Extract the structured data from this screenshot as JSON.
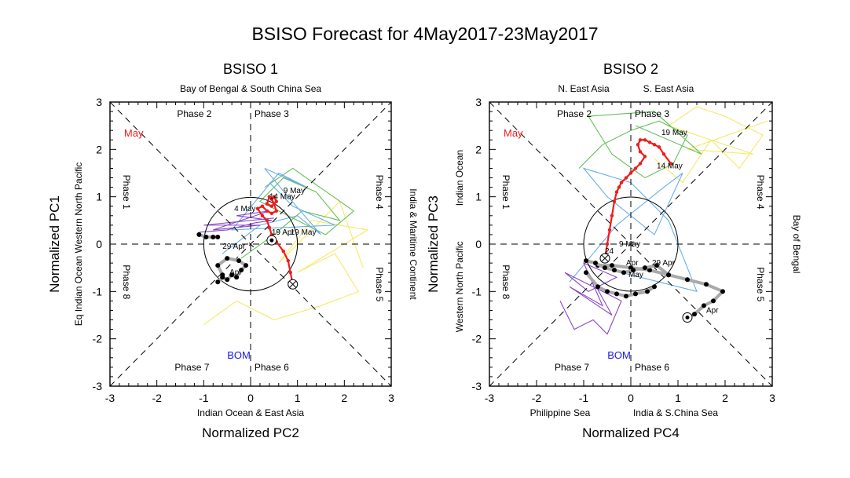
{
  "title": "BSISO Forecast for 4May2017-23May2017",
  "colors": {
    "observed": "#ee1c1c",
    "forecast_mean": "#a9a9a9",
    "ensemble": [
      "#f2e85a",
      "#55b848",
      "#56a6e6",
      "#7b34c0"
    ],
    "bom_label": "#1818ee",
    "month_label": "#ee1c1c"
  },
  "chart_data": [
    {
      "type": "line",
      "title": "BSISO 1",
      "xlabel": "Normalized PC2",
      "ylabel": "Normalized PC1",
      "xlim": [
        -3,
        3
      ],
      "ylim": [
        3,
        -3
      ],
      "x_ticks": [
        "-3",
        "-2",
        "-1",
        "0",
        "1",
        "2",
        "3"
      ],
      "y_ticks": [
        "-3",
        "-2",
        "-1",
        "0",
        "1",
        "2",
        "3"
      ],
      "grid": false,
      "phases": {
        "p1": "Phase 1",
        "p2": "Phase 2",
        "p3": "Phase 3",
        "p4": "Phase 4",
        "p5": "Phase 5",
        "p6": "Phase 6",
        "p7": "Phase 7",
        "p8": "Phase 8"
      },
      "regions": {
        "top": "Bay of Bengal & South China Sea",
        "bottom": "Indian Ocean & East Asia",
        "left_outer": "Eq Indian Ocean",
        "left_inner": "Western North Pacific",
        "right": "India & Maritime Continent"
      },
      "bom_label": "BOM",
      "month_label": "May",
      "unit_circle_radius": 1,
      "annotations": [
        "29 Apr",
        "Apr",
        "19  Apr",
        "19 May",
        "4 May",
        "14 May",
        "9 May"
      ],
      "series": [
        {
          "name": "observed",
          "x": [
            0.9,
            0.85,
            0.8,
            0.7,
            0.55,
            0.45,
            0.4,
            0.35,
            0.25,
            0.15,
            0.25,
            0.35,
            0.45,
            0.55,
            0.5,
            0.45,
            0.5,
            0.55,
            0.45,
            0.35,
            0.4
          ],
          "y": [
            -0.85,
            -0.6,
            -0.35,
            -0.15,
            0.05,
            0.2,
            0.35,
            0.5,
            0.6,
            0.75,
            0.8,
            0.7,
            0.65,
            0.7,
            0.85,
            0.95,
            1.0,
            0.9,
            0.8,
            0.85,
            1.0
          ]
        },
        {
          "name": "forecast_mean",
          "x": [
            -0.7,
            -0.6,
            -0.5,
            -0.4,
            -0.3,
            -0.2,
            -0.1,
            -0.25,
            -0.5,
            -0.7,
            -0.6
          ],
          "y": [
            -0.8,
            -0.7,
            -0.75,
            -0.65,
            -0.7,
            -0.55,
            -0.45,
            -0.35,
            -0.3,
            -0.45,
            -0.65
          ]
        },
        {
          "name": "forecast_mean_short",
          "x": [
            -1.1,
            -0.95,
            -0.8,
            -0.7
          ],
          "y": [
            0.2,
            0.15,
            0.15,
            0.15
          ]
        },
        {
          "name": "ensemble_purple",
          "x": [
            -1.1,
            -0.5,
            0.1,
            0.45,
            -0.3,
            0.4,
            -0.8,
            0.2,
            -1.0,
            0.5
          ],
          "y": [
            0.25,
            0.3,
            0.45,
            0.5,
            0.6,
            0.7,
            0.3,
            0.4,
            0.4,
            0.55
          ]
        },
        {
          "name": "ensemble_blue",
          "x": [
            -0.6,
            0.2,
            1.0,
            1.5,
            0.8,
            0.3,
            1.2,
            0.6,
            -0.4,
            1.8,
            0.9,
            0.4
          ],
          "y": [
            -0.2,
            0.4,
            0.6,
            0.2,
            1.0,
            1.6,
            1.2,
            1.5,
            0.3,
            0.4,
            0.8,
            1.3
          ]
        },
        {
          "name": "ensemble_green",
          "x": [
            -0.2,
            0.5,
            1.1,
            1.9,
            1.4,
            0.7,
            0.2,
            1.6,
            2.2,
            0.9,
            0.3
          ],
          "y": [
            -0.3,
            0.2,
            0.7,
            0.5,
            1.1,
            1.4,
            0.9,
            0.2,
            0.7,
            1.6,
            1.2
          ]
        },
        {
          "name": "ensemble_yellow",
          "x": [
            -1.0,
            -0.3,
            0.5,
            1.5,
            2.3,
            1.8,
            1.0,
            2.5,
            1.3,
            0.6,
            1.9,
            2.4
          ],
          "y": [
            -1.7,
            -1.2,
            -1.6,
            -1.3,
            -1.0,
            -0.2,
            -0.6,
            0.3,
            0.5,
            -0.4,
            0.9,
            -0.5
          ]
        }
      ]
    },
    {
      "type": "line",
      "title": "BSISO 2",
      "xlabel": "Normalized PC4",
      "ylabel": "Normalized PC3",
      "xlim": [
        -3,
        3
      ],
      "ylim": [
        3,
        -3
      ],
      "x_ticks": [
        "-3",
        "-2",
        "-1",
        "0",
        "1",
        "2",
        "3"
      ],
      "y_ticks": [
        "-3",
        "-2",
        "-1",
        "0",
        "1",
        "2",
        "3"
      ],
      "grid": false,
      "phases": {
        "p1": "Phase 1",
        "p2": "Phase 2",
        "p3": "Phase 3",
        "p4": "Phase 4",
        "p5": "Phase 5",
        "p6": "Phase 6",
        "p7": "Phase 7",
        "p8": "Phase 8"
      },
      "regions": {
        "top_left": "N. East Asia",
        "top_right": "S. East Asia",
        "bottom_left": "Philippine Sea",
        "bottom_right": "India & S.China Sea",
        "left_outer": "Indian Ocean",
        "left_inner": "Western North Pacific",
        "right": "Bay of Bengal"
      },
      "bom_label": "BOM",
      "month_label": "May",
      "unit_circle_radius": 1,
      "annotations": [
        "Apr",
        "29 Apr",
        "Apr",
        "24",
        "May",
        "9 May",
        "14 May",
        "19 May"
      ],
      "series": [
        {
          "name": "observed",
          "x": [
            -0.55,
            -0.5,
            -0.45,
            -0.4,
            -0.35,
            -0.3,
            -0.25,
            -0.2,
            -0.1,
            0.0,
            0.1,
            0.2,
            0.3,
            0.2,
            0.15,
            0.2,
            0.3,
            0.4,
            0.5,
            0.6,
            0.7,
            0.85
          ],
          "y": [
            -0.3,
            0.0,
            0.3,
            0.6,
            0.9,
            1.1,
            1.2,
            1.3,
            1.4,
            1.5,
            1.6,
            1.7,
            1.85,
            1.95,
            2.1,
            2.2,
            2.2,
            2.15,
            2.1,
            2.05,
            1.9,
            1.7
          ]
        },
        {
          "name": "forecast_mean",
          "x": [
            1.2,
            1.35,
            1.55,
            1.75,
            1.95,
            1.6,
            1.2,
            0.8,
            0.4,
            0.0,
            -0.4,
            -0.7
          ],
          "y": [
            -1.55,
            -1.48,
            -1.3,
            -1.2,
            -1.0,
            -0.85,
            -0.75,
            -0.65,
            -0.55,
            -0.5,
            -0.45,
            -0.45
          ]
        },
        {
          "name": "forecast_mean_2",
          "x": [
            -0.95,
            -0.7,
            -0.5,
            -0.3,
            -0.1,
            0.1,
            0.35,
            0.5
          ],
          "y": [
            -0.6,
            -0.9,
            -1.0,
            -1.05,
            -1.1,
            -1.05,
            -1.0,
            -0.9
          ]
        },
        {
          "name": "forecast_mean_3",
          "x": [
            -0.95,
            -0.75,
            -0.55,
            -0.35,
            -0.15,
            0.05,
            0.3,
            0.55,
            0.8
          ],
          "y": [
            -0.35,
            -0.4,
            -0.5,
            -0.55,
            -0.6,
            -0.55,
            -0.5,
            -0.45,
            -0.65
          ]
        },
        {
          "name": "ensemble_purple",
          "x": [
            -1.5,
            -1.2,
            -0.8,
            -0.5,
            -0.2,
            -1.4,
            -0.9,
            -0.3,
            -1.0,
            -0.6,
            -1.3,
            -0.4,
            -0.9
          ],
          "y": [
            -1.2,
            -1.8,
            -1.6,
            -1.9,
            -1.2,
            -0.6,
            -1.0,
            -0.7,
            -0.4,
            -1.3,
            -0.9,
            -1.5,
            -0.6
          ]
        },
        {
          "name": "ensemble_blue",
          "x": [
            -1.3,
            -0.8,
            -0.3,
            0.2,
            0.7,
            1.1,
            0.5,
            -0.5,
            -1.0,
            0.0,
            0.8,
            1.4,
            -0.2
          ],
          "y": [
            -0.8,
            -0.2,
            0.4,
            0.8,
            1.2,
            1.5,
            0.2,
            1.0,
            1.6,
            1.3,
            0.5,
            -1.0,
            -0.6
          ]
        },
        {
          "name": "ensemble_green",
          "x": [
            -1.1,
            -0.6,
            0.0,
            0.6,
            1.2,
            0.9,
            0.3,
            -0.4,
            -0.9,
            0.5,
            1.5,
            0.1
          ],
          "y": [
            1.6,
            2.1,
            2.4,
            2.6,
            2.3,
            1.7,
            1.4,
            1.9,
            2.7,
            2.8,
            1.9,
            2.5
          ]
        },
        {
          "name": "ensemble_yellow",
          "x": [
            0.5,
            1.1,
            1.7,
            2.3,
            2.8,
            2.0,
            1.4,
            0.8,
            2.6,
            1.2,
            2.9
          ],
          "y": [
            1.8,
            1.3,
            2.2,
            1.6,
            2.3,
            2.7,
            2.9,
            2.5,
            1.9,
            2.0,
            2.6
          ]
        }
      ]
    }
  ]
}
